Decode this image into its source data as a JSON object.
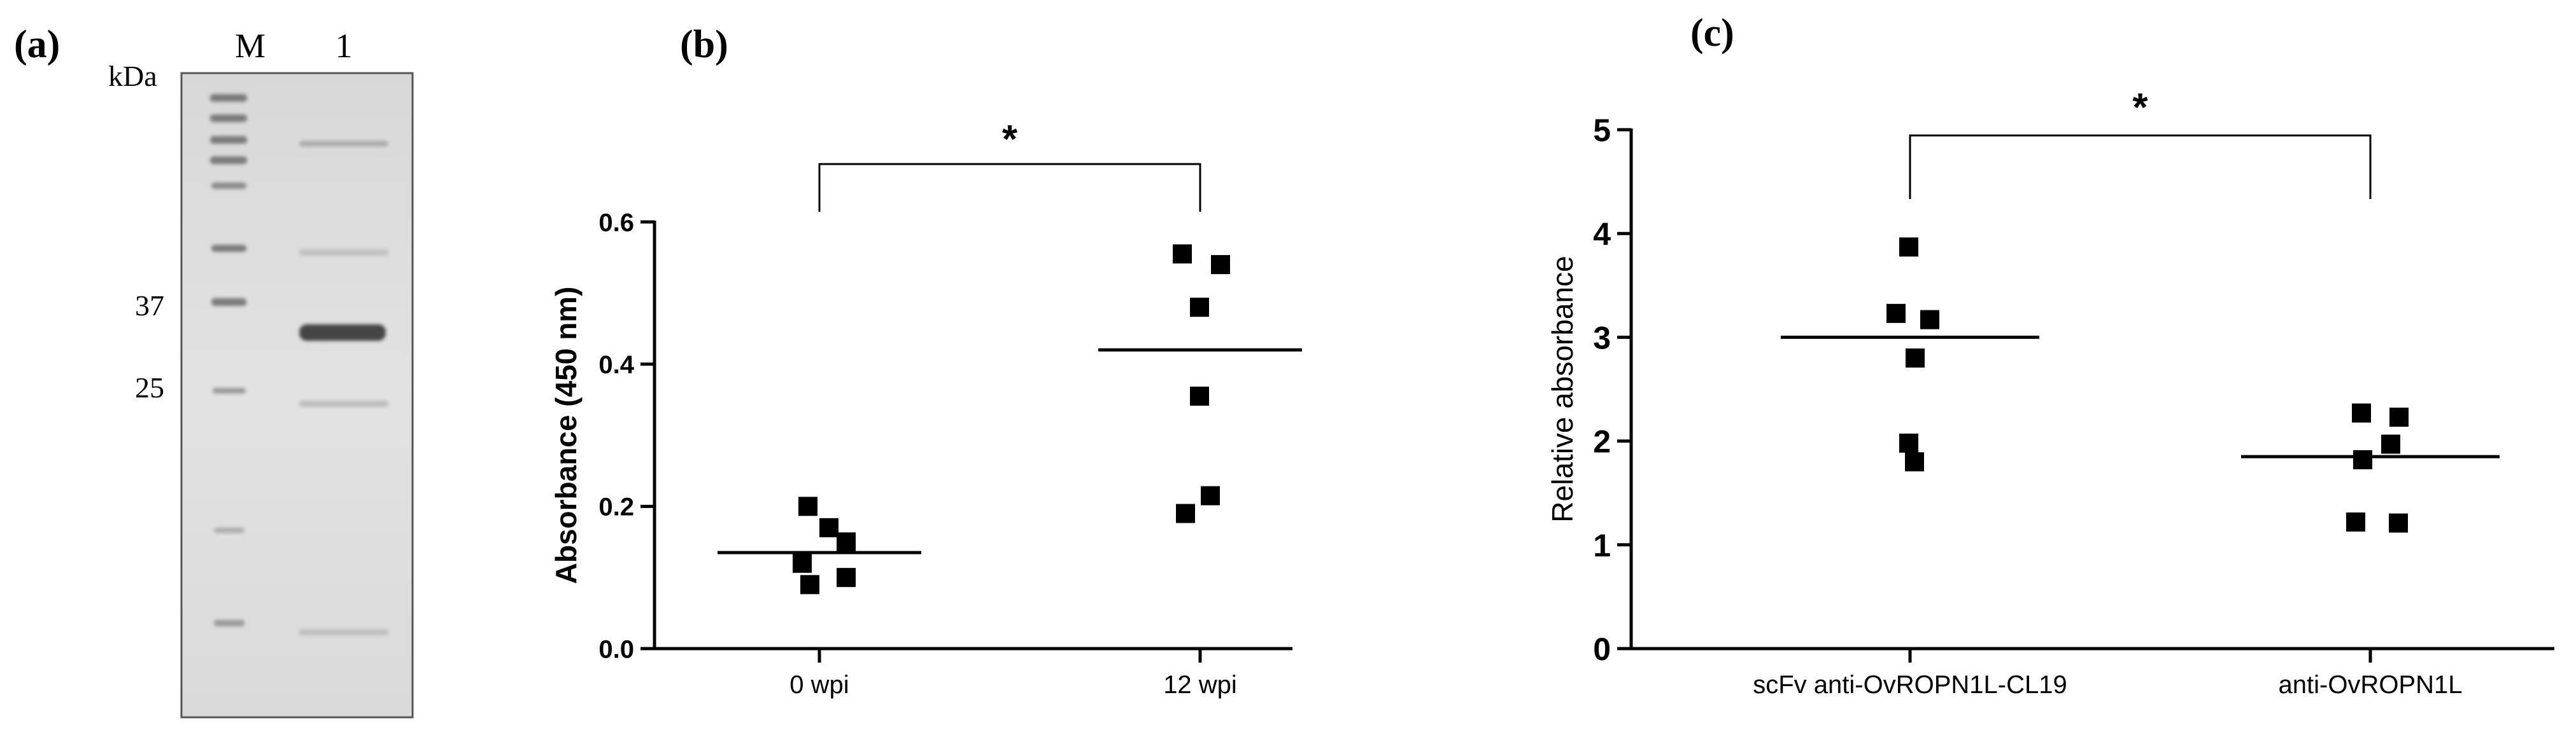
{
  "panels": {
    "a": {
      "letter": "(a)",
      "unit": "kDa",
      "lanes": [
        "M",
        "1"
      ],
      "markers": [
        "37",
        "25"
      ]
    },
    "b": {
      "letter": "(b)"
    },
    "c": {
      "letter": "(c)"
    }
  },
  "chart_data": [
    {
      "type": "scatter",
      "panel": "b",
      "ylabel": "Absorbance (450 nm)",
      "xlabel": "",
      "categories": [
        "0 wpi",
        "12 wpi"
      ],
      "ylim": [
        0,
        0.6
      ],
      "yticks": [
        "0.0",
        "0.2",
        "0.4",
        "0.6"
      ],
      "series": [
        {
          "values": [
            [
              0.2,
              0.17,
              0.15,
              0.12,
              0.1,
              0.09
            ],
            [
              0.555,
              0.54,
              0.48,
              0.355,
              0.215,
              0.19
            ]
          ]
        }
      ],
      "means": [
        0.135,
        0.42
      ],
      "annotation": "*",
      "grid": false,
      "marker_color": "#000000"
    },
    {
      "type": "scatter",
      "panel": "c",
      "ylabel": "Relative absorbance",
      "xlabel": "",
      "categories": [
        "scFv anti-OvROPN1L-CL19",
        "anti-OvROPN1L"
      ],
      "ylim": [
        0,
        5
      ],
      "yticks": [
        "0",
        "1",
        "2",
        "3",
        "4",
        "5"
      ],
      "series": [
        {
          "values": [
            [
              3.87,
              3.23,
              3.17,
              2.8,
              1.98,
              1.8
            ],
            [
              2.27,
              2.23,
              1.97,
              1.82,
              1.22,
              1.21
            ]
          ]
        }
      ],
      "means": [
        3.0,
        1.85
      ],
      "annotation": "*",
      "grid": false,
      "marker_color": "#000000"
    }
  ]
}
